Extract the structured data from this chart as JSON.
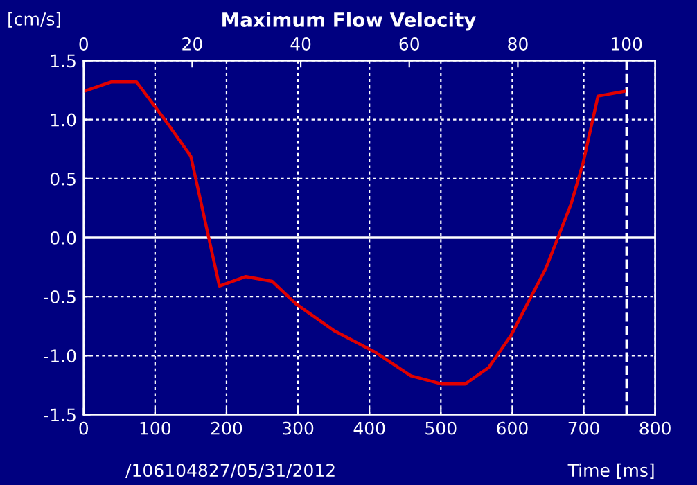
{
  "chart_data": {
    "type": "line",
    "title": "Maximum Flow Velocity",
    "ylabel": "[cm/s]",
    "xlabel": "Time [ms]",
    "annotations": [
      "/106104827/05/31/2012"
    ],
    "x": [
      0,
      39,
      74,
      116,
      150,
      190,
      227,
      264,
      297,
      351,
      408,
      458,
      501,
      534,
      567,
      598,
      647,
      682,
      699,
      720,
      757
    ],
    "series": [
      {
        "color": "#e00000",
        "values": [
          1.24,
          1.32,
          1.32,
          0.98,
          0.69,
          -0.41,
          -0.33,
          -0.37,
          -0.56,
          -0.79,
          -0.97,
          -1.17,
          -1.24,
          -1.24,
          -1.1,
          -0.83,
          -0.26,
          0.28,
          0.63,
          1.2,
          1.24
        ]
      }
    ],
    "xlim": [
      0,
      800
    ],
    "xticks": [
      0,
      100,
      200,
      300,
      400,
      500,
      600,
      700,
      800
    ],
    "ylim": [
      -1.5,
      1.5
    ],
    "yticks": [
      {
        "value": -1.5,
        "label": "-1.5"
      },
      {
        "value": -1.0,
        "label": "-1.0"
      },
      {
        "value": -0.5,
        "label": "-0.5"
      },
      {
        "value": 0,
        "label": "0.0"
      },
      {
        "value": 0.5,
        "label": "0.5"
      },
      {
        "value": 1.0,
        "label": "1.0"
      },
      {
        "value": 1.5,
        "label": "1.5"
      }
    ],
    "x2lim": [
      0,
      105.3
    ],
    "x2ticks": [
      0,
      20,
      40,
      60,
      80,
      100
    ],
    "ref_lines": [
      {
        "axis": "y",
        "value": 0,
        "color": "#ffffff",
        "line_style": "solid"
      },
      {
        "axis": "x",
        "value": 760,
        "color": "#ffffff",
        "line_style": "dashed"
      }
    ],
    "grid": true,
    "legend": false,
    "marker": "none",
    "line_style": "solid"
  }
}
